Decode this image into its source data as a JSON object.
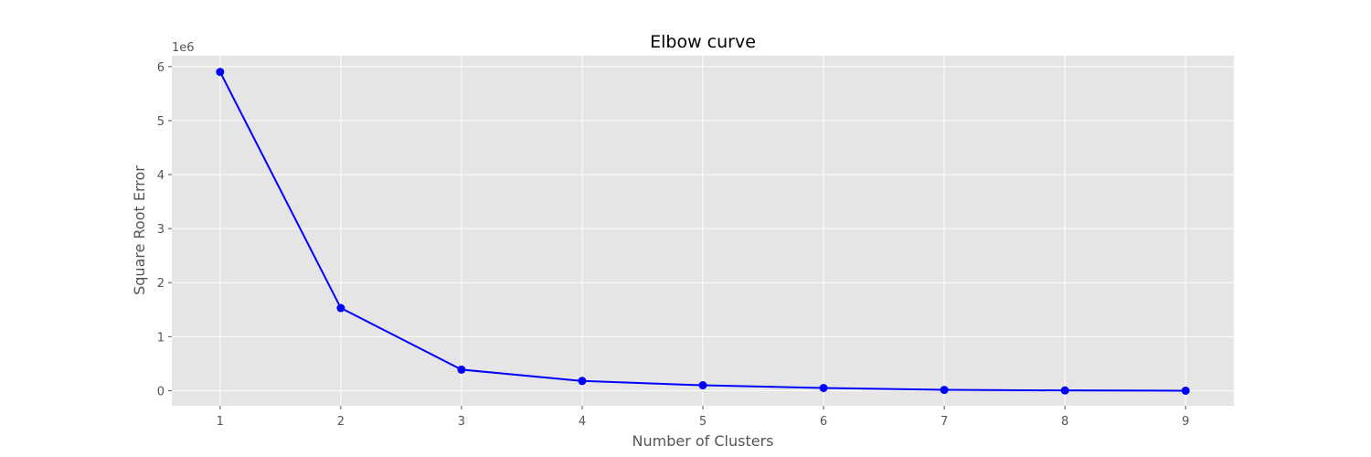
{
  "chart_data": {
    "type": "line",
    "title": "Elbow curve",
    "xlabel": "Number of Clusters",
    "ylabel": "Square Root Error",
    "y_offset_label": "1e6",
    "x": [
      1,
      2,
      3,
      4,
      5,
      6,
      7,
      8,
      9
    ],
    "series": [
      {
        "values": [
          5.9,
          1.53,
          0.39,
          0.18,
          0.1,
          0.05,
          0.015,
          0.005,
          0.0
        ]
      }
    ],
    "x_ticks": [
      1,
      2,
      3,
      4,
      5,
      6,
      7,
      8,
      9
    ],
    "y_ticks": [
      0,
      1,
      2,
      3,
      4,
      5,
      6
    ],
    "xlim": [
      0.6,
      9.4
    ],
    "ylim": [
      -0.28,
      6.2
    ],
    "grid": true,
    "colors": {
      "line": "#0000ff",
      "marker": "#0000ff",
      "plot_background": "#e5e5e5",
      "grid": "#ffffff"
    }
  }
}
